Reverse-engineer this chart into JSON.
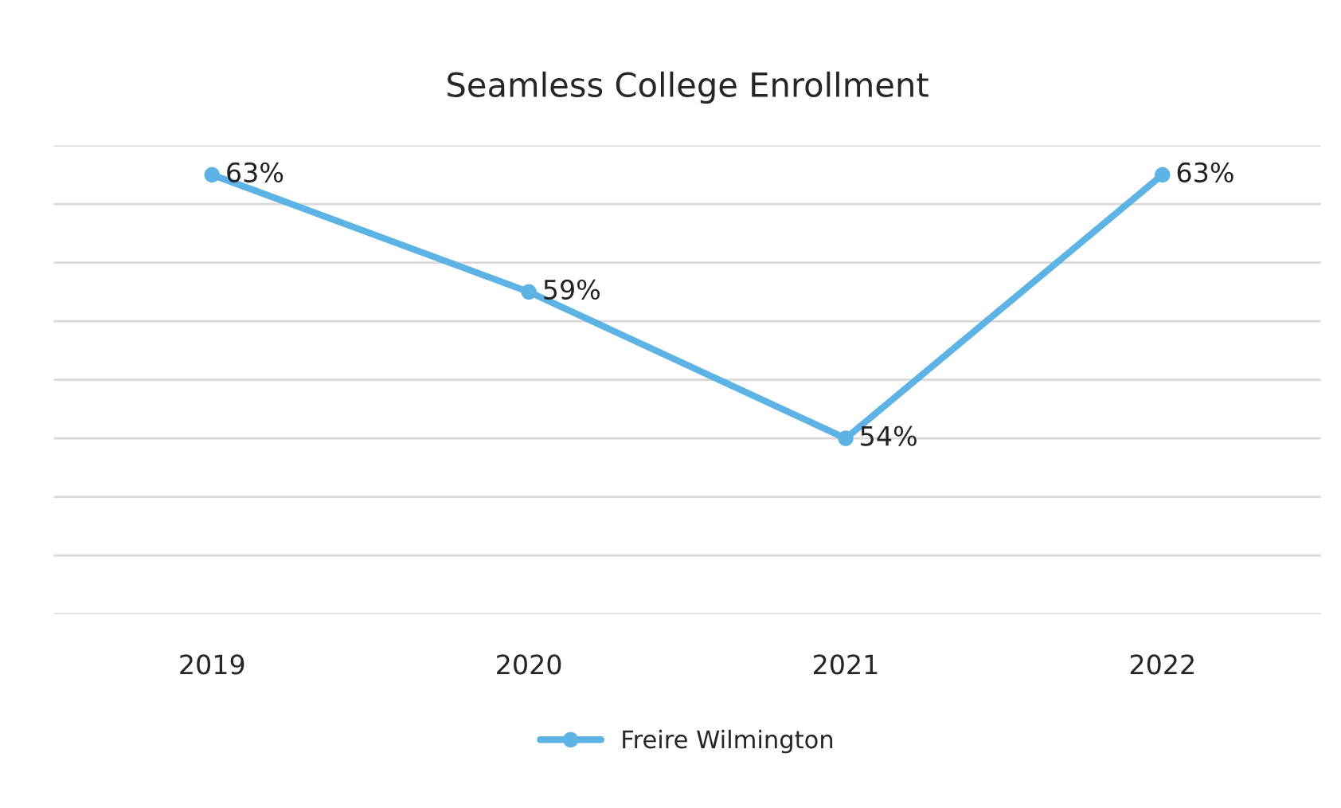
{
  "chart_data": {
    "type": "line",
    "title": "Seamless College Enrollment",
    "categories": [
      "2019",
      "2020",
      "2021",
      "2022"
    ],
    "series": [
      {
        "name": "Freire Wilmington",
        "color": "#5cb3e4",
        "values": [
          63,
          59,
          54,
          63
        ],
        "value_labels": [
          "63%",
          "59%",
          "54%",
          "63%"
        ]
      }
    ],
    "ylim": [
      48,
      64
    ],
    "yticks": [
      {
        "value": 48,
        "label": null
      },
      {
        "value": 50,
        "label": null
      },
      {
        "value": 52,
        "label": null
      },
      {
        "value": 54,
        "label": null
      },
      {
        "value": 56,
        "label": null
      },
      {
        "value": 58,
        "label": null
      },
      {
        "value": 60,
        "label": null
      },
      {
        "value": 62,
        "label": null
      },
      {
        "value": 64,
        "label": null
      }
    ],
    "tick_labels": "x",
    "grid": "y",
    "legend": "bottom",
    "marker": "circle",
    "line_style": "solid"
  }
}
